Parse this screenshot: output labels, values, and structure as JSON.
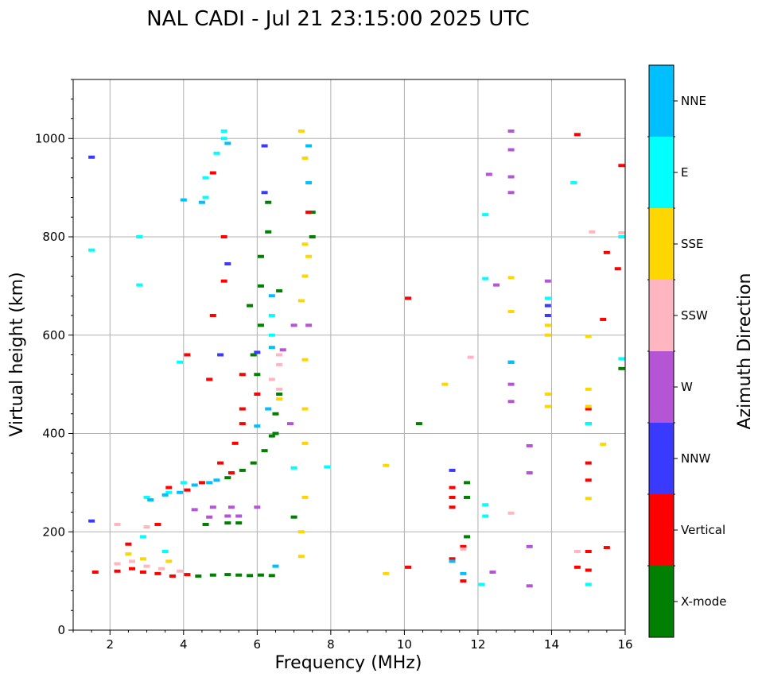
{
  "chart_data": {
    "type": "scatter",
    "title": "NAL CADI - Jul 21 23:15:00 2025 UTC",
    "xlabel": "Frequency (MHz)",
    "ylabel": "Virtual height (km)",
    "xlim": [
      1,
      16
    ],
    "ylim": [
      0,
      1120
    ],
    "xticks": [
      2,
      4,
      6,
      8,
      10,
      12,
      14,
      16
    ],
    "yticks": [
      0,
      200,
      400,
      600,
      800,
      1000
    ],
    "xtick_labels": [
      "2",
      "4",
      "6",
      "8",
      "10",
      "12",
      "14",
      "16"
    ],
    "ytick_labels": [
      "0",
      "200",
      "400",
      "600",
      "800",
      "1000"
    ],
    "grid": true,
    "colorbar": {
      "label": "Azimuth Direction",
      "categories": [
        {
          "name": "X-mode",
          "color": "#008000"
        },
        {
          "name": "Vertical",
          "color": "#ff0000"
        },
        {
          "name": "NNW",
          "color": "#3a3aff"
        },
        {
          "name": "W",
          "color": "#b455d6"
        },
        {
          "name": "SSW",
          "color": "#ffb6c1"
        },
        {
          "name": "SSE",
          "color": "#ffd700"
        },
        {
          "name": "E",
          "color": "#00ffff"
        },
        {
          "name": "NNE",
          "color": "#00bfff"
        }
      ]
    },
    "series": [
      {
        "name": "X-mode",
        "points": [
          [
            4.4,
            110
          ],
          [
            4.8,
            112
          ],
          [
            5.2,
            113
          ],
          [
            5.5,
            112
          ],
          [
            5.8,
            111
          ],
          [
            6.1,
            112
          ],
          [
            6.4,
            111
          ],
          [
            4.6,
            215
          ],
          [
            5.2,
            218
          ],
          [
            5.5,
            218
          ],
          [
            5.2,
            310
          ],
          [
            5.6,
            325
          ],
          [
            5.9,
            340
          ],
          [
            6.2,
            365
          ],
          [
            6.4,
            395
          ],
          [
            6.5,
            440
          ],
          [
            6.6,
            480
          ],
          [
            6.0,
            520
          ],
          [
            5.9,
            560
          ],
          [
            6.1,
            620
          ],
          [
            5.8,
            660
          ],
          [
            6.1,
            700
          ],
          [
            6.1,
            760
          ],
          [
            6.3,
            810
          ],
          [
            6.3,
            870
          ],
          [
            7.5,
            850
          ],
          [
            7.5,
            800
          ],
          [
            10.4,
            420
          ],
          [
            11.7,
            300
          ],
          [
            11.7,
            270
          ],
          [
            11.7,
            190
          ],
          [
            15.9,
            532
          ],
          [
            6.6,
            690
          ],
          [
            6.5,
            400
          ],
          [
            7.0,
            230
          ]
        ]
      },
      {
        "name": "Vertical",
        "points": [
          [
            1.6,
            118
          ],
          [
            2.2,
            120
          ],
          [
            2.6,
            125
          ],
          [
            2.9,
            118
          ],
          [
            3.3,
            115
          ],
          [
            3.7,
            110
          ],
          [
            4.1,
            113
          ],
          [
            2.5,
            175
          ],
          [
            3.3,
            215
          ],
          [
            4.1,
            285
          ],
          [
            4.5,
            300
          ],
          [
            5.0,
            340
          ],
          [
            5.4,
            380
          ],
          [
            5.6,
            420
          ],
          [
            5.6,
            450
          ],
          [
            5.3,
            320
          ],
          [
            4.7,
            510
          ],
          [
            4.8,
            640
          ],
          [
            5.1,
            710
          ],
          [
            4.1,
            560
          ],
          [
            5.6,
            520
          ],
          [
            4.8,
            930
          ],
          [
            5.1,
            800
          ],
          [
            11.3,
            290
          ],
          [
            11.3,
            270
          ],
          [
            11.3,
            250
          ],
          [
            11.3,
            145
          ],
          [
            11.6,
            170
          ],
          [
            11.6,
            100
          ],
          [
            15.0,
            420
          ],
          [
            15.0,
            450
          ],
          [
            15.0,
            340
          ],
          [
            15.0,
            305
          ],
          [
            15.4,
            632
          ],
          [
            15.5,
            768
          ],
          [
            15.8,
            735
          ],
          [
            15.9,
            945
          ],
          [
            14.7,
            1008
          ],
          [
            10.1,
            675
          ],
          [
            14.7,
            128
          ],
          [
            15.0,
            122
          ],
          [
            15.5,
            168
          ],
          [
            15.0,
            160
          ],
          [
            10.1,
            128
          ],
          [
            7.4,
            850
          ],
          [
            3.6,
            290
          ],
          [
            6.0,
            480
          ]
        ]
      },
      {
        "name": "NNW",
        "points": [
          [
            1.5,
            962
          ],
          [
            1.5,
            222
          ],
          [
            6.2,
            890
          ],
          [
            6.2,
            985
          ],
          [
            12.9,
            545
          ],
          [
            13.9,
            660
          ],
          [
            13.9,
            640
          ],
          [
            5.2,
            745
          ],
          [
            5.0,
            560
          ],
          [
            11.3,
            325
          ],
          [
            6.0,
            565
          ]
        ]
      },
      {
        "name": "W",
        "points": [
          [
            4.3,
            245
          ],
          [
            4.8,
            250
          ],
          [
            5.3,
            250
          ],
          [
            6.0,
            250
          ],
          [
            4.7,
            230
          ],
          [
            5.2,
            232
          ],
          [
            5.5,
            232
          ],
          [
            12.9,
            1015
          ],
          [
            12.9,
            977
          ],
          [
            12.3,
            927
          ],
          [
            12.9,
            922
          ],
          [
            12.9,
            890
          ],
          [
            12.5,
            702
          ],
          [
            13.9,
            710
          ],
          [
            12.9,
            500
          ],
          [
            12.9,
            465
          ],
          [
            13.4,
            375
          ],
          [
            13.4,
            320
          ],
          [
            13.4,
            170
          ],
          [
            13.4,
            90
          ],
          [
            12.4,
            118
          ],
          [
            7.0,
            620
          ],
          [
            7.4,
            620
          ],
          [
            6.7,
            570
          ],
          [
            6.9,
            420
          ]
        ]
      },
      {
        "name": "SSW",
        "points": [
          [
            2.2,
            135
          ],
          [
            2.6,
            140
          ],
          [
            3.0,
            130
          ],
          [
            3.4,
            125
          ],
          [
            3.9,
            120
          ],
          [
            2.2,
            215
          ],
          [
            3.0,
            210
          ],
          [
            6.6,
            560
          ],
          [
            6.6,
            540
          ],
          [
            6.6,
            490
          ],
          [
            6.4,
            510
          ],
          [
            12.9,
            238
          ],
          [
            15.1,
            810
          ],
          [
            14.7,
            160
          ],
          [
            11.6,
            165
          ],
          [
            11.8,
            555
          ],
          [
            15.9,
            808
          ]
        ]
      },
      {
        "name": "SSE",
        "points": [
          [
            2.5,
            155
          ],
          [
            2.9,
            145
          ],
          [
            3.6,
            140
          ],
          [
            7.2,
            150
          ],
          [
            7.2,
            200
          ],
          [
            7.3,
            270
          ],
          [
            7.3,
            380
          ],
          [
            7.3,
            450
          ],
          [
            7.3,
            550
          ],
          [
            7.2,
            670
          ],
          [
            7.3,
            720
          ],
          [
            7.3,
            785
          ],
          [
            7.4,
            760
          ],
          [
            7.3,
            960
          ],
          [
            7.2,
            1015
          ],
          [
            9.5,
            335
          ],
          [
            9.5,
            115
          ],
          [
            11.1,
            500
          ],
          [
            12.9,
            717
          ],
          [
            12.9,
            648
          ],
          [
            13.9,
            620
          ],
          [
            13.9,
            600
          ],
          [
            13.9,
            480
          ],
          [
            13.9,
            455
          ],
          [
            15.0,
            598
          ],
          [
            15.0,
            490
          ],
          [
            15.0,
            455
          ],
          [
            15.0,
            268
          ],
          [
            15.4,
            378
          ],
          [
            6.6,
            470
          ]
        ]
      },
      {
        "name": "E",
        "points": [
          [
            1.5,
            773
          ],
          [
            2.8,
            800
          ],
          [
            2.8,
            702
          ],
          [
            3.0,
            270
          ],
          [
            3.6,
            280
          ],
          [
            4.0,
            300
          ],
          [
            2.9,
            190
          ],
          [
            3.5,
            160
          ],
          [
            4.6,
            880
          ],
          [
            4.6,
            920
          ],
          [
            4.9,
            970
          ],
          [
            5.1,
            1015
          ],
          [
            3.9,
            545
          ],
          [
            6.4,
            640
          ],
          [
            6.4,
            600
          ],
          [
            7.0,
            330
          ],
          [
            12.2,
            845
          ],
          [
            12.2,
            715
          ],
          [
            12.2,
            255
          ],
          [
            12.2,
            232
          ],
          [
            12.1,
            93
          ],
          [
            14.6,
            910
          ],
          [
            15.0,
            420
          ],
          [
            15.0,
            93
          ],
          [
            15.9,
            800
          ],
          [
            15.9,
            552
          ],
          [
            7.9,
            332
          ],
          [
            13.9,
            675
          ],
          [
            5.1,
            1000
          ]
        ]
      },
      {
        "name": "NNE",
        "points": [
          [
            3.1,
            265
          ],
          [
            3.5,
            275
          ],
          [
            3.9,
            280
          ],
          [
            4.3,
            295
          ],
          [
            4.7,
            300
          ],
          [
            4.9,
            305
          ],
          [
            5.2,
            990
          ],
          [
            4.5,
            870
          ],
          [
            4.0,
            875
          ],
          [
            6.4,
            680
          ],
          [
            6.4,
            575
          ],
          [
            6.3,
            450
          ],
          [
            6.0,
            415
          ],
          [
            7.4,
            985
          ],
          [
            7.4,
            910
          ],
          [
            11.6,
            115
          ],
          [
            12.9,
            545
          ],
          [
            11.3,
            140
          ],
          [
            6.5,
            130
          ]
        ]
      }
    ]
  }
}
